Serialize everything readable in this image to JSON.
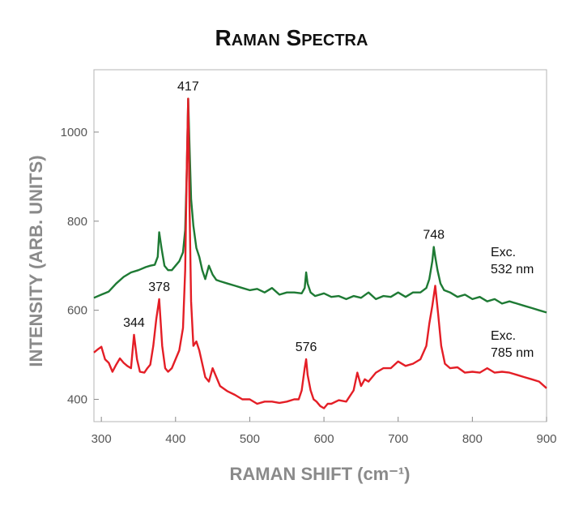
{
  "chart_data": {
    "type": "line",
    "title": "Raman Spectra",
    "xlabel": "RAMAN SHIFT (cm⁻¹)",
    "ylabel": "INTENSITY (ARB. UNITS)",
    "xlim": [
      290,
      900
    ],
    "ylim": [
      350,
      1140
    ],
    "xticks": [
      300,
      400,
      500,
      600,
      700,
      800,
      900
    ],
    "yticks": [
      400,
      600,
      800,
      1000
    ],
    "grid": false,
    "legend": "none",
    "series": [
      {
        "name": "Exc. 532 nm",
        "label_lines": [
          "Exc.",
          "532 nm"
        ],
        "color": "#1e7a34",
        "x": [
          290,
          300,
          310,
          320,
          330,
          340,
          350,
          360,
          366,
          372,
          376,
          378,
          381,
          385,
          390,
          395,
          400,
          405,
          410,
          413,
          415,
          417,
          419,
          421,
          424,
          428,
          432,
          436,
          440,
          445,
          450,
          455,
          460,
          470,
          480,
          490,
          500,
          510,
          520,
          530,
          540,
          550,
          560,
          570,
          574,
          576,
          578,
          582,
          588,
          600,
          610,
          620,
          630,
          640,
          650,
          660,
          670,
          680,
          690,
          700,
          710,
          720,
          730,
          738,
          742,
          746,
          748,
          750,
          753,
          757,
          762,
          770,
          780,
          790,
          800,
          810,
          820,
          830,
          840,
          850,
          860,
          870,
          880,
          890,
          900
        ],
        "y": [
          628,
          635,
          642,
          660,
          675,
          685,
          690,
          697,
          700,
          702,
          720,
          775,
          740,
          700,
          690,
          690,
          700,
          710,
          730,
          780,
          900,
          1075,
          960,
          850,
          790,
          740,
          720,
          690,
          670,
          700,
          680,
          668,
          665,
          660,
          655,
          650,
          645,
          648,
          640,
          650,
          635,
          640,
          640,
          638,
          650,
          685,
          660,
          640,
          632,
          638,
          630,
          632,
          625,
          632,
          628,
          640,
          625,
          632,
          630,
          640,
          630,
          640,
          640,
          650,
          670,
          710,
          742,
          720,
          690,
          660,
          645,
          640,
          630,
          635,
          625,
          630,
          620,
          625,
          615,
          620,
          615,
          610,
          605,
          600,
          595
        ]
      },
      {
        "name": "Exc. 785 nm",
        "label_lines": [
          "Exc.",
          "785 nm"
        ],
        "color": "#e41e26",
        "x": [
          290,
          295,
          300,
          305,
          310,
          315,
          320,
          325,
          330,
          335,
          340,
          344,
          348,
          352,
          358,
          362,
          366,
          370,
          374,
          378,
          382,
          386,
          390,
          395,
          400,
          405,
          410,
          413,
          415,
          417,
          419,
          421,
          424,
          428,
          432,
          436,
          440,
          445,
          450,
          455,
          460,
          470,
          480,
          490,
          500,
          510,
          520,
          530,
          540,
          550,
          560,
          566,
          570,
          574,
          576,
          578,
          582,
          586,
          590,
          595,
          600,
          605,
          610,
          620,
          630,
          640,
          645,
          650,
          655,
          660,
          670,
          680,
          690,
          700,
          710,
          720,
          730,
          738,
          742,
          746,
          750,
          754,
          758,
          763,
          770,
          780,
          790,
          800,
          810,
          820,
          830,
          840,
          850,
          860,
          870,
          880,
          890,
          900
        ],
        "y": [
          505,
          512,
          518,
          490,
          482,
          462,
          478,
          492,
          482,
          475,
          470,
          545,
          490,
          462,
          460,
          470,
          478,
          520,
          580,
          625,
          520,
          470,
          462,
          470,
          490,
          510,
          560,
          690,
          900,
          1075,
          820,
          620,
          520,
          530,
          510,
          480,
          450,
          440,
          470,
          450,
          430,
          418,
          410,
          400,
          400,
          390,
          395,
          395,
          392,
          395,
          400,
          400,
          420,
          470,
          490,
          455,
          420,
          400,
          395,
          385,
          380,
          390,
          390,
          398,
          395,
          420,
          460,
          430,
          445,
          440,
          460,
          470,
          470,
          485,
          475,
          480,
          490,
          520,
          570,
          610,
          655,
          590,
          520,
          480,
          470,
          472,
          460,
          462,
          460,
          470,
          460,
          462,
          460,
          455,
          450,
          445,
          440,
          425
        ]
      }
    ],
    "annotations": [
      {
        "text": "417",
        "x": 417
      },
      {
        "text": "378",
        "x": 378
      },
      {
        "text": "344",
        "x": 344
      },
      {
        "text": "576",
        "x": 576
      },
      {
        "text": "748",
        "x": 748
      }
    ]
  }
}
